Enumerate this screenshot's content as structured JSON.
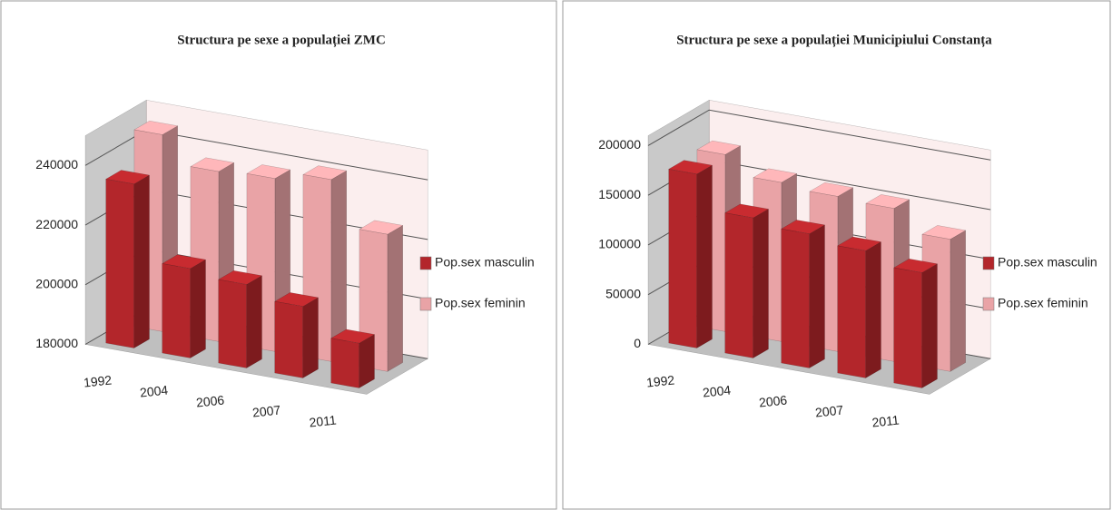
{
  "chart_data": [
    {
      "type": "bar3d",
      "title": "Structura pe sexe a populației ZMC",
      "categories": [
        "1992",
        "2004",
        "2006",
        "2007",
        "2011"
      ],
      "series": [
        {
          "name": "Pop.sex masculin",
          "color": "#b3262b",
          "values": [
            235000,
            210000,
            208000,
            204000,
            195000
          ]
        },
        {
          "name": "Pop.sex feminin",
          "color": "#e9a3a6",
          "values": [
            246000,
            237000,
            238000,
            241000,
            226000
          ]
        }
      ],
      "ylim": [
        180000,
        250000
      ],
      "yticks": [
        180000,
        200000,
        220000,
        240000
      ],
      "grid": true
    },
    {
      "type": "bar3d",
      "title": "Structura pe sexe a populației Municipiului Constanța",
      "categories": [
        "1992",
        "2004",
        "2006",
        "2007",
        "2011"
      ],
      "series": [
        {
          "name": "Pop.sex masculin",
          "color": "#b3262b",
          "values": [
            175000,
            141000,
            135000,
            128000,
            116000
          ]
        },
        {
          "name": "Pop.sex feminin",
          "color": "#e9a3a6",
          "values": [
            178000,
            160000,
            156000,
            154000,
            133000
          ]
        }
      ],
      "ylim": [
        0,
        210000
      ],
      "yticks": [
        0,
        50000,
        100000,
        150000,
        200000
      ],
      "grid": true
    }
  ]
}
